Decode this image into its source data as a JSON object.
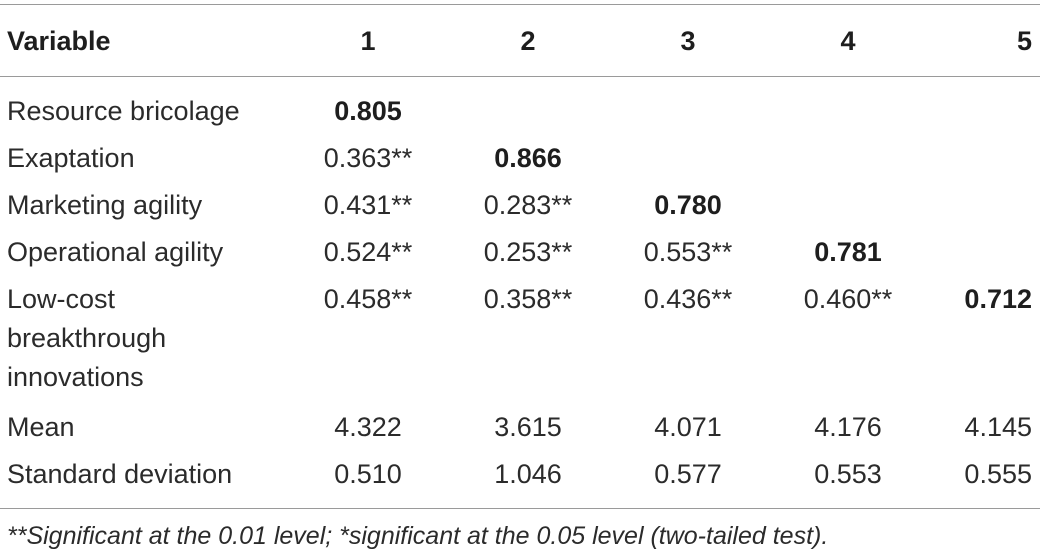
{
  "table": {
    "headers": [
      "Variable",
      "1",
      "2",
      "3",
      "4",
      "5"
    ],
    "rows": [
      {
        "label": "Resource bricolage",
        "values": [
          "0.805",
          "",
          "",
          "",
          ""
        ]
      },
      {
        "label": "Exaptation",
        "values": [
          "0.363**",
          "0.866",
          "",
          "",
          ""
        ]
      },
      {
        "label": "Marketing agility",
        "values": [
          "0.431**",
          "0.283**",
          "0.780",
          "",
          ""
        ]
      },
      {
        "label": "Operational agility",
        "values": [
          "0.524**",
          "0.253**",
          "0.553**",
          "0.781",
          ""
        ]
      },
      {
        "label_lines": [
          "Low-cost",
          "breakthrough",
          "innovations"
        ],
        "values": [
          "0.458**",
          "0.358**",
          "0.436**",
          "0.460**",
          "0.712"
        ]
      },
      {
        "label": "Mean",
        "values": [
          "4.322",
          "3.615",
          "4.071",
          "4.176",
          "4.145"
        ]
      },
      {
        "label": "Standard deviation",
        "values": [
          "0.510",
          "1.046",
          "0.577",
          "0.553",
          "0.555"
        ]
      }
    ]
  },
  "footnote": "**Significant at the 0.01 level; *significant at the 0.05 level (two-tailed test)."
}
